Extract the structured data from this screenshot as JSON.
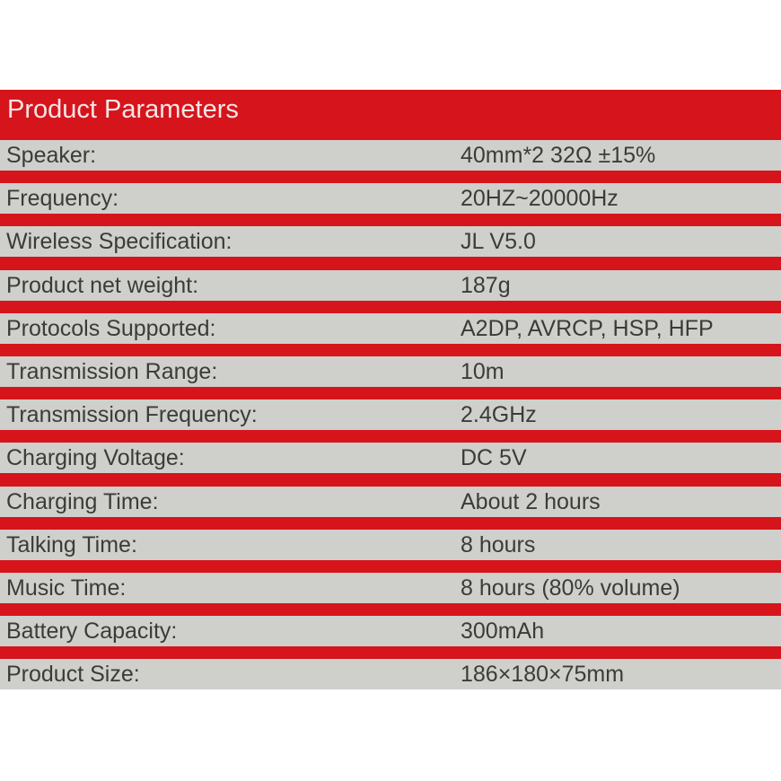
{
  "title": "Product Parameters",
  "colors": {
    "band": "#d6141b",
    "row": "#cfcfcc",
    "text": "#3b3b38"
  },
  "rows": [
    {
      "label": "Speaker:",
      "value": "40mm*2  32Ω ±15%"
    },
    {
      "label": "Frequency:",
      "value": "20HZ~20000Hz"
    },
    {
      "label": "Wireless Specification:",
      "value": "JL V5.0"
    },
    {
      "label": "Product net weight:",
      "value": "187g"
    },
    {
      "label": "Protocols Supported:",
      "value": "A2DP, AVRCP, HSP, HFP"
    },
    {
      "label": "Transmission Range:",
      "value": "10m"
    },
    {
      "label": "Transmission Frequency:",
      "value": "2.4GHz"
    },
    {
      "label": "Charging Voltage:",
      "value": "DC 5V"
    },
    {
      "label": "Charging Time:",
      "value": "About 2 hours"
    },
    {
      "label": "Talking Time:",
      "value": "8 hours"
    },
    {
      "label": "Music Time:",
      "value": "8 hours (80% volume)"
    },
    {
      "label": "Battery Capacity:",
      "value": "300mAh"
    },
    {
      "label": "Product Size:",
      "value": "186×180×75mm"
    }
  ]
}
